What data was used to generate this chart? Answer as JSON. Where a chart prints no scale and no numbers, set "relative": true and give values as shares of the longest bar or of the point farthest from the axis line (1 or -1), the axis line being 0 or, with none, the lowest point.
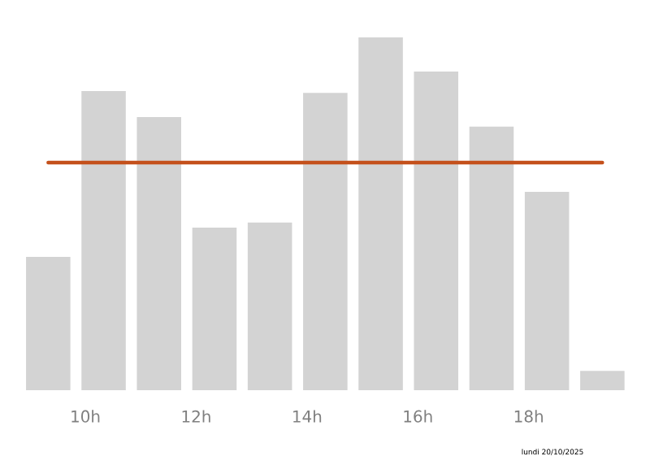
{
  "chart_data": {
    "type": "bar",
    "relative": true,
    "x": [
      9.33,
      10.33,
      11.33,
      12.33,
      13.33,
      14.33,
      15.33,
      16.33,
      17.33,
      18.33,
      19.33
    ],
    "values": [
      0.378,
      0.848,
      0.774,
      0.461,
      0.475,
      0.843,
      1.0,
      0.903,
      0.747,
      0.562,
      0.055
    ],
    "color": "#d3d3d3",
    "xlim": [
      8.9,
      19.75
    ],
    "xticks": [
      {
        "value": 10,
        "label": "10h"
      },
      {
        "value": 12,
        "label": "12h"
      },
      {
        "value": 14,
        "label": "14h"
      },
      {
        "value": 16,
        "label": "16h"
      },
      {
        "value": 18,
        "label": "18h"
      }
    ],
    "ref_lines": [
      {
        "axis": "y",
        "value": 0.645,
        "color": "#c4501b"
      }
    ],
    "annotations": [
      "lundi 20/10/2025"
    ]
  }
}
